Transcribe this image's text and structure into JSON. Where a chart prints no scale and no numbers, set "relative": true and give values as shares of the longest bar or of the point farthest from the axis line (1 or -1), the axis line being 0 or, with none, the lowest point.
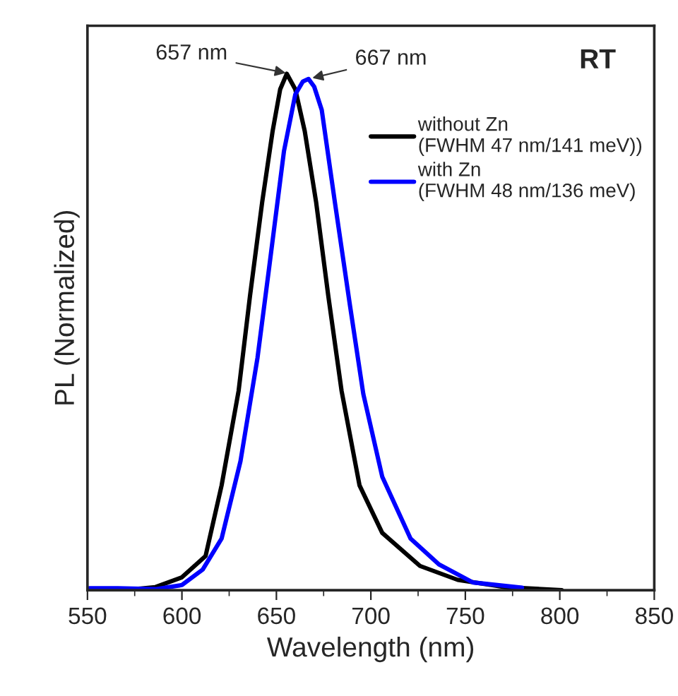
{
  "chart_data": {
    "type": "line",
    "xlabel": "Wavelength (nm)",
    "ylabel": "PL (Normalized)",
    "relative": true,
    "xlim": [
      550,
      850
    ],
    "xticks": [
      550,
      600,
      650,
      700,
      750,
      800,
      850
    ],
    "series": [
      {
        "name": "without Zn\n(FWHM 47 nm/141 meV))",
        "color": "#000000",
        "x": [
          575,
          586,
          600,
          612.5,
          621,
          630,
          636,
          642.5,
          648,
          652,
          655.5,
          660,
          665,
          671,
          677.5,
          684.5,
          694,
          706,
          726,
          746,
          771,
          801
        ],
        "values": [
          0.002,
          0.006,
          0.025,
          0.066,
          0.203,
          0.386,
          0.569,
          0.752,
          0.889,
          0.97,
          1.0,
          0.97,
          0.889,
          0.752,
          0.569,
          0.386,
          0.203,
          0.111,
          0.047,
          0.02,
          0.006,
          0.0
        ]
      },
      {
        "name": "with Zn\n(FWHM 48 nm/136 meV)",
        "color": "#0000ff",
        "x": [
          551,
          566,
          586,
          600,
          611,
          621,
          631,
          640,
          646,
          654,
          660,
          664,
          667,
          670,
          674,
          681,
          689,
          696,
          706,
          721,
          736,
          754,
          780
        ],
        "values": [
          0.004,
          0.004,
          0.002,
          0.01,
          0.04,
          0.1,
          0.25,
          0.45,
          0.62,
          0.85,
          0.96,
          0.985,
          0.99,
          0.975,
          0.93,
          0.75,
          0.55,
          0.38,
          0.22,
          0.1,
          0.05,
          0.015,
          0.005
        ]
      }
    ],
    "annotations": [
      {
        "text": "657 nm",
        "x": 657,
        "y": 1.0
      },
      {
        "text": "667 nm",
        "x": 667,
        "y": 0.99
      },
      "RT"
    ],
    "legend": "top right",
    "grid": false,
    "marker": "none",
    "line_style": "solid"
  }
}
